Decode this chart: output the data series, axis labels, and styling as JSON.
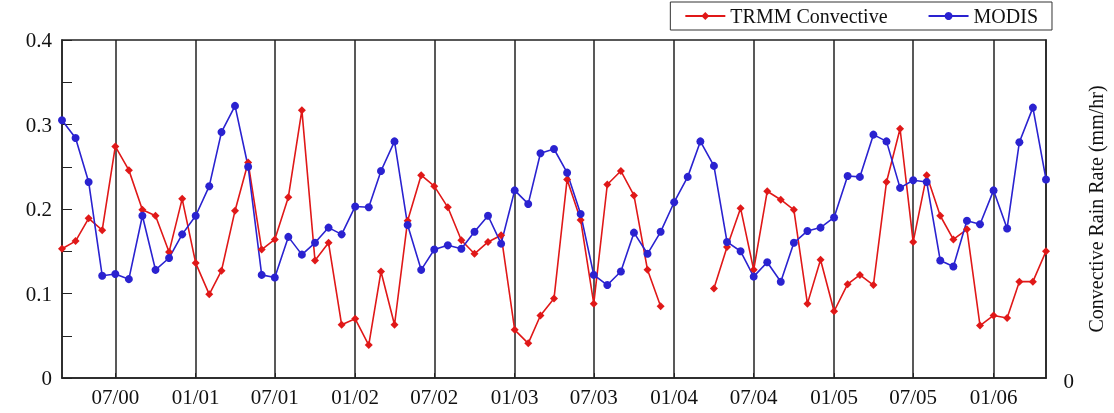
{
  "chart_data": {
    "type": "line",
    "y2label": "Convective Rain Rate (mm/hr)",
    "x": [
      "2000-03",
      "2000-04",
      "2000-05",
      "2000-06",
      "2000-07",
      "2000-08",
      "2000-09",
      "2000-10",
      "2000-11",
      "2000-12",
      "2001-01",
      "2001-02",
      "2001-03",
      "2001-04",
      "2001-05",
      "2001-06",
      "2001-07",
      "2001-08",
      "2001-09",
      "2001-10",
      "2001-11",
      "2001-12",
      "2002-01",
      "2002-02",
      "2002-03",
      "2002-04",
      "2002-05",
      "2002-06",
      "2002-07",
      "2002-08",
      "2002-09",
      "2002-10",
      "2002-11",
      "2002-12",
      "2003-01",
      "2003-02",
      "2003-03",
      "2003-04",
      "2003-05",
      "2003-06",
      "2003-07",
      "2003-08",
      "2003-09",
      "2003-10",
      "2003-11",
      "2003-12",
      "2004-01",
      "2004-02",
      "2004-03",
      "2004-04",
      "2004-05",
      "2004-06",
      "2004-07",
      "2004-08",
      "2004-09",
      "2004-10",
      "2004-11",
      "2004-12",
      "2005-01",
      "2005-02",
      "2005-03",
      "2005-04",
      "2005-05",
      "2005-06",
      "2005-07",
      "2005-08",
      "2005-09",
      "2005-10",
      "2005-11",
      "2005-12",
      "2006-01",
      "2006-02",
      "2006-03",
      "2006-04",
      "2006-05"
    ],
    "series": [
      {
        "name": "TRMM Convective",
        "color": "#e01818",
        "marker": "diamond",
        "values": [
          0.153,
          0.162,
          0.189,
          0.175,
          0.274,
          0.246,
          0.199,
          0.192,
          0.149,
          0.212,
          0.136,
          0.099,
          0.127,
          0.198,
          0.255,
          0.152,
          0.164,
          0.214,
          0.317,
          0.139,
          0.16,
          0.063,
          0.07,
          0.039,
          0.126,
          0.063,
          0.186,
          0.24,
          0.227,
          0.202,
          0.163,
          0.147,
          0.161,
          0.169,
          0.057,
          0.041,
          0.074,
          0.094,
          0.235,
          0.187,
          0.088,
          0.229,
          0.245,
          0.216,
          0.128,
          0.085,
          null,
          null,
          null,
          0.106,
          0.155,
          0.201,
          0.128,
          0.221,
          0.211,
          0.199,
          0.088,
          0.14,
          0.079,
          0.111,
          0.122,
          0.11,
          0.232,
          0.295,
          0.161,
          0.24,
          0.192,
          0.164,
          0.176,
          0.062,
          0.074,
          0.071,
          0.114,
          0.114,
          0.15
        ]
      },
      {
        "name": "MODIS",
        "color": "#2a22d0",
        "marker": "circle",
        "values": [
          0.305,
          0.284,
          0.232,
          0.121,
          0.123,
          0.117,
          0.192,
          0.128,
          0.142,
          0.17,
          0.192,
          0.227,
          0.291,
          0.322,
          0.25,
          0.122,
          0.119,
          0.167,
          0.146,
          0.16,
          0.178,
          0.17,
          0.203,
          0.202,
          0.245,
          0.28,
          0.181,
          0.128,
          0.152,
          0.157,
          0.153,
          0.173,
          0.192,
          0.159,
          0.222,
          0.206,
          0.266,
          0.271,
          0.243,
          0.194,
          0.122,
          0.11,
          0.126,
          0.172,
          0.147,
          0.173,
          0.208,
          0.238,
          0.28,
          0.251,
          0.161,
          0.15,
          0.12,
          0.137,
          0.114,
          0.16,
          0.174,
          0.178,
          0.19,
          0.239,
          0.238,
          0.288,
          0.28,
          0.225,
          0.234,
          0.232,
          0.139,
          0.132,
          0.186,
          0.182,
          0.222,
          0.177,
          0.279,
          0.32,
          0.235
        ]
      }
    ],
    "xlim": [
      "2000-03",
      "2006-05"
    ],
    "xticks": [
      {
        "value": "2000-07",
        "label": "07/00"
      },
      {
        "value": "2001-01",
        "label": "01/01"
      },
      {
        "value": "2001-07",
        "label": "07/01"
      },
      {
        "value": "2002-01",
        "label": "01/02"
      },
      {
        "value": "2002-07",
        "label": "07/02"
      },
      {
        "value": "2003-01",
        "label": "01/03"
      },
      {
        "value": "2003-07",
        "label": "07/03"
      },
      {
        "value": "2004-01",
        "label": "01/04"
      },
      {
        "value": "2004-07",
        "label": "07/04"
      },
      {
        "value": "2005-01",
        "label": "01/05"
      },
      {
        "value": "2005-07",
        "label": "07/05"
      },
      {
        "value": "2006-01",
        "label": "01/06"
      }
    ],
    "ylim": [
      0,
      0.4
    ],
    "yticks": [
      0,
      {
        "value": 0.05,
        "label": null
      },
      0.1,
      {
        "value": 0.15,
        "label": null
      },
      0.2,
      {
        "value": 0.25,
        "label": null
      },
      0.3,
      {
        "value": 0.35,
        "label": null
      },
      0.4
    ],
    "annotations": [
      "0"
    ],
    "grid": "x",
    "legend": "top right"
  }
}
